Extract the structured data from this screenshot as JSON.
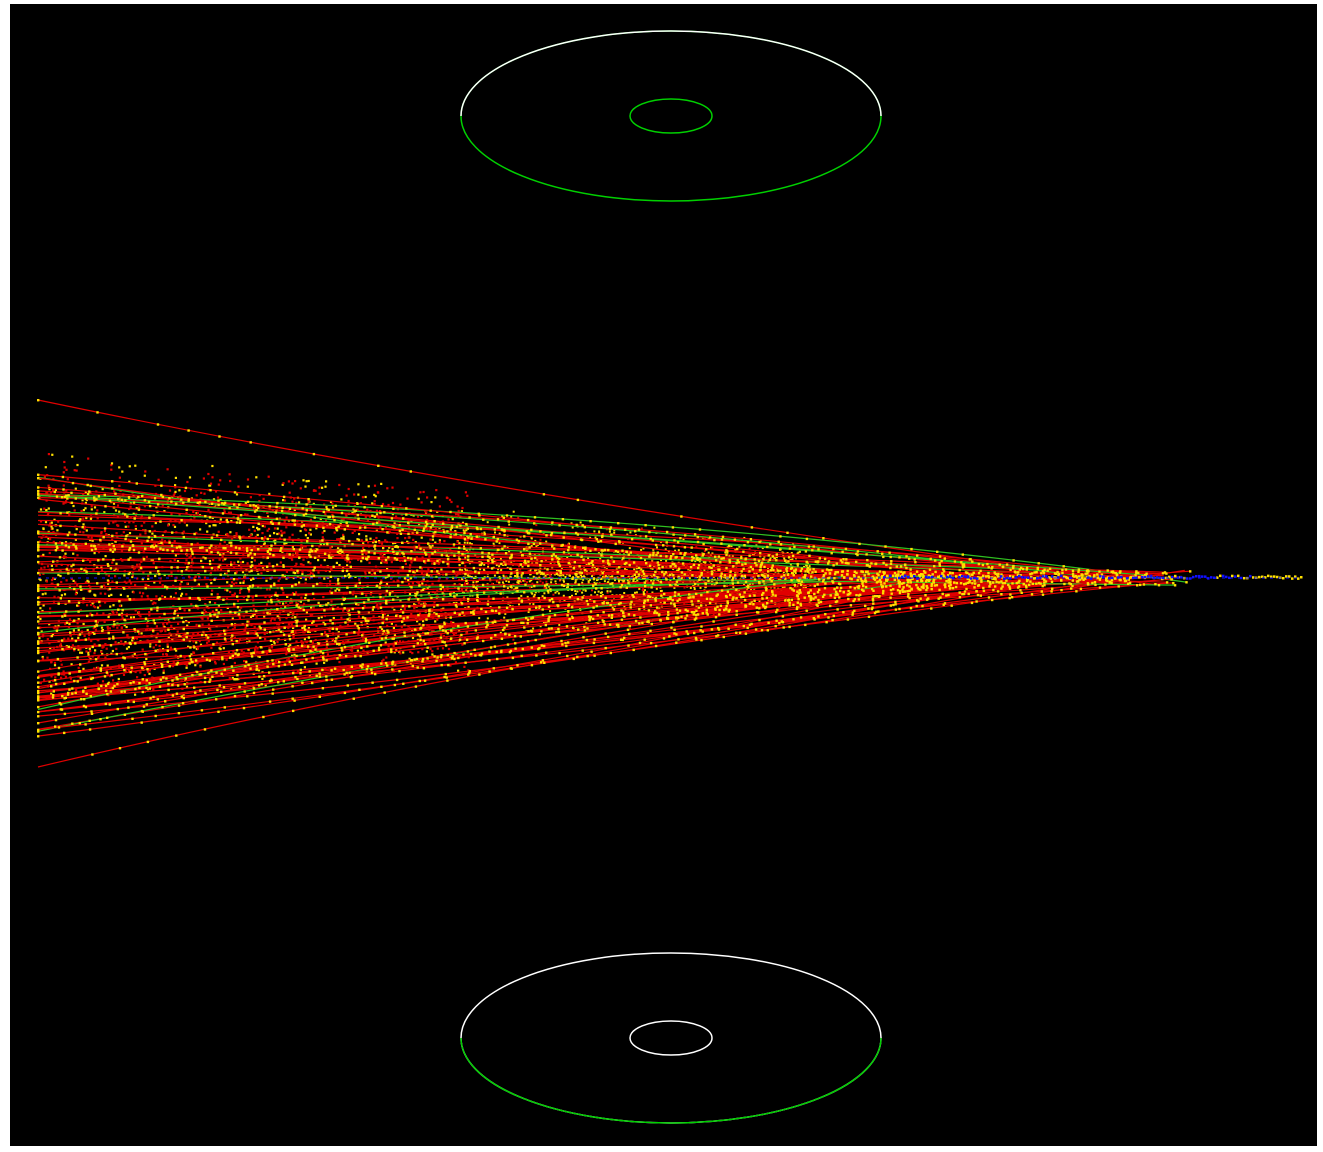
{
  "scene": {
    "background": "#000000",
    "frame_color": "#ffffff",
    "detector_outline_color": "#00e000",
    "detector_outline_alt_color": "#ffffff",
    "track_color": "#e00000",
    "hit_color": "#ffe000",
    "beam_color": "#1010ff",
    "track_count": 90,
    "hit_density": "high"
  }
}
